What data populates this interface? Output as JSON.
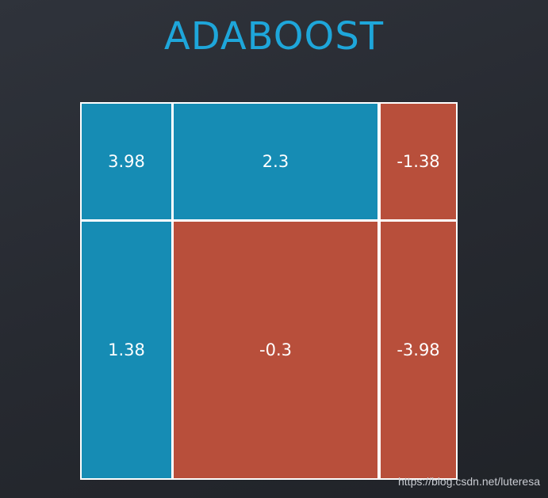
{
  "title": "ADABOOST",
  "cells": [
    [
      "3.98",
      "2.3",
      "-1.38"
    ],
    [
      "1.38",
      "-0.3",
      "-3.98"
    ]
  ],
  "watermark": "https://blog.csdn.net/luteresa"
}
